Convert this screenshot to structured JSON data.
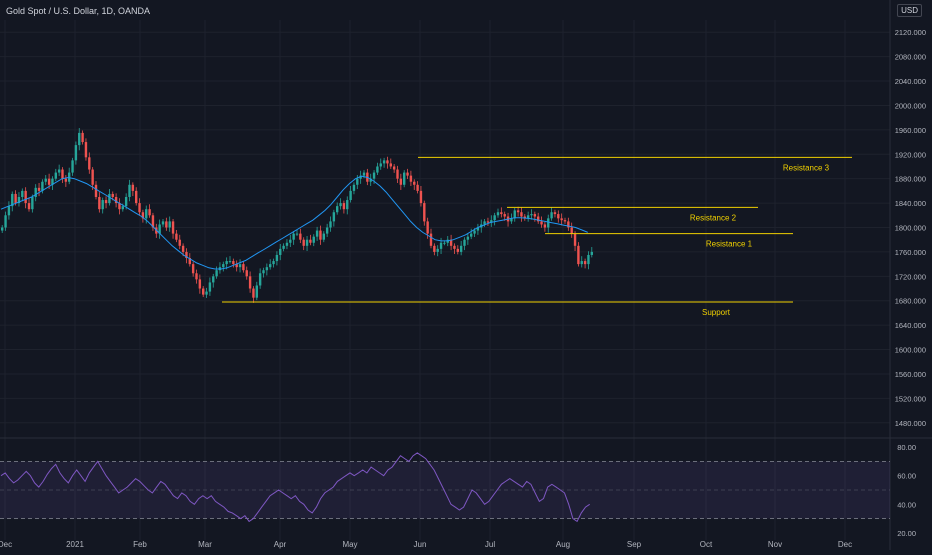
{
  "chart_data": {
    "type": "candlestick",
    "title": "Gold Spot / U.S. Dollar, 1D, OANDA",
    "currency": "USD",
    "ylim": [
      1460,
      2140
    ],
    "y_ticks": [
      2120,
      2080,
      2040,
      2000,
      1960,
      1920,
      1880,
      1840,
      1800,
      1760,
      1720,
      1680,
      1640,
      1600,
      1560,
      1520,
      1480
    ],
    "y_tick_labels": [
      "2120.000",
      "2080.000",
      "2040.000",
      "2000.000",
      "1960.000",
      "1920.000",
      "1880.000",
      "1840.000",
      "1800.000",
      "1760.000",
      "1720.000",
      "1680.000",
      "1640.000",
      "1600.000",
      "1560.000",
      "1520.000",
      "1480.000"
    ],
    "x_labels": [
      "Dec",
      "2021",
      "Feb",
      "Mar",
      "Apr",
      "May",
      "Jun",
      "Jul",
      "Aug",
      "Sep",
      "Oct",
      "Nov",
      "Dec"
    ],
    "colors": {
      "up": "#26a69a",
      "down": "#ef5350",
      "ma": "#2196f3",
      "level": "#f0d000",
      "rsi": "#7e57c2",
      "rsi_band": "#7e57c2"
    },
    "close_series": [
      1800,
      1820,
      1835,
      1855,
      1840,
      1850,
      1860,
      1840,
      1830,
      1850,
      1865,
      1860,
      1875,
      1880,
      1870,
      1880,
      1890,
      1895,
      1880,
      1875,
      1890,
      1910,
      1935,
      1955,
      1940,
      1915,
      1895,
      1870,
      1850,
      1830,
      1845,
      1840,
      1855,
      1850,
      1840,
      1830,
      1835,
      1850,
      1870,
      1860,
      1840,
      1825,
      1815,
      1830,
      1820,
      1800,
      1790,
      1805,
      1810,
      1800,
      1810,
      1790,
      1780,
      1770,
      1760,
      1750,
      1740,
      1725,
      1715,
      1700,
      1690,
      1695,
      1710,
      1720,
      1730,
      1735,
      1740,
      1745,
      1745,
      1740,
      1735,
      1740,
      1730,
      1720,
      1700,
      1685,
      1705,
      1725,
      1730,
      1735,
      1740,
      1745,
      1755,
      1765,
      1770,
      1775,
      1780,
      1790,
      1790,
      1780,
      1770,
      1780,
      1775,
      1785,
      1795,
      1780,
      1790,
      1800,
      1810,
      1825,
      1835,
      1840,
      1830,
      1845,
      1860,
      1870,
      1880,
      1885,
      1890,
      1875,
      1880,
      1890,
      1900,
      1905,
      1910,
      1905,
      1900,
      1895,
      1880,
      1870,
      1890,
      1885,
      1875,
      1870,
      1860,
      1840,
      1810,
      1790,
      1770,
      1760,
      1765,
      1775,
      1775,
      1780,
      1770,
      1765,
      1760,
      1770,
      1780,
      1785,
      1790,
      1795,
      1800,
      1805,
      1810,
      1808,
      1812,
      1820,
      1825,
      1822,
      1818,
      1810,
      1815,
      1828,
      1825,
      1818,
      1815,
      1820,
      1822,
      1818,
      1810,
      1805,
      1800,
      1815,
      1825,
      1822,
      1815,
      1812,
      1810,
      1800,
      1790,
      1770,
      1740,
      1745,
      1740,
      1755,
      1760
    ],
    "ma_series": [
      1830,
      1834,
      1838,
      1842,
      1846,
      1850,
      1856,
      1862,
      1868,
      1874,
      1880,
      1882,
      1880,
      1876,
      1872,
      1866,
      1860,
      1854,
      1848,
      1842,
      1836,
      1830,
      1824,
      1818,
      1810,
      1800,
      1790,
      1780,
      1770,
      1762,
      1754,
      1748,
      1742,
      1738,
      1734,
      1732,
      1732,
      1734,
      1738,
      1742,
      1746,
      1752,
      1758,
      1764,
      1770,
      1776,
      1782,
      1788,
      1794,
      1800,
      1806,
      1812,
      1820,
      1828,
      1838,
      1850,
      1862,
      1872,
      1880,
      1884,
      1882,
      1876,
      1868,
      1858,
      1846,
      1834,
      1822,
      1810,
      1800,
      1792,
      1786,
      1780,
      1778,
      1778,
      1780,
      1784,
      1788,
      1794,
      1800,
      1804,
      1808,
      1810,
      1812,
      1814,
      1816,
      1816,
      1815,
      1814,
      1812,
      1810,
      1808,
      1806,
      1804,
      1802,
      1800,
      1796,
      1792
    ],
    "rsi": {
      "ylim": [
        15,
        85
      ],
      "levels": [
        70,
        30
      ],
      "mid": 50,
      "y_ticks": [
        80,
        60,
        40,
        20
      ],
      "y_tick_labels": [
        "80.00",
        "60.00",
        "40.00",
        "20.00"
      ],
      "values": [
        60,
        62,
        58,
        55,
        57,
        60,
        63,
        60,
        55,
        52,
        56,
        61,
        65,
        68,
        62,
        58,
        55,
        60,
        64,
        60,
        56,
        62,
        66,
        70,
        65,
        60,
        56,
        52,
        48,
        50,
        52,
        55,
        58,
        56,
        53,
        50,
        48,
        52,
        56,
        54,
        50,
        46,
        44,
        48,
        46,
        42,
        40,
        44,
        46,
        44,
        46,
        42,
        40,
        38,
        35,
        34,
        32,
        30,
        32,
        28,
        30,
        34,
        38,
        42,
        46,
        48,
        50,
        48,
        46,
        44,
        46,
        42,
        40,
        36,
        34,
        38,
        44,
        48,
        50,
        52,
        56,
        58,
        60,
        62,
        60,
        62,
        64,
        62,
        66,
        64,
        62,
        60,
        64,
        66,
        70,
        74,
        72,
        70,
        74,
        76,
        74,
        72,
        68,
        64,
        58,
        52,
        46,
        40,
        38,
        36,
        38,
        44,
        50,
        48,
        44,
        40,
        42,
        46,
        50,
        54,
        56,
        58,
        56,
        54,
        52,
        56,
        54,
        48,
        42,
        44,
        52,
        54,
        52,
        50,
        48,
        40,
        30,
        28,
        34,
        38,
        40
      ]
    },
    "annotations": [
      {
        "label": "Resistance 3",
        "level": 1915
      },
      {
        "label": "Resistance 2",
        "level": 1833
      },
      {
        "label": "Resistance 1",
        "level": 1790
      },
      {
        "label": "Support",
        "level": 1678
      }
    ]
  }
}
